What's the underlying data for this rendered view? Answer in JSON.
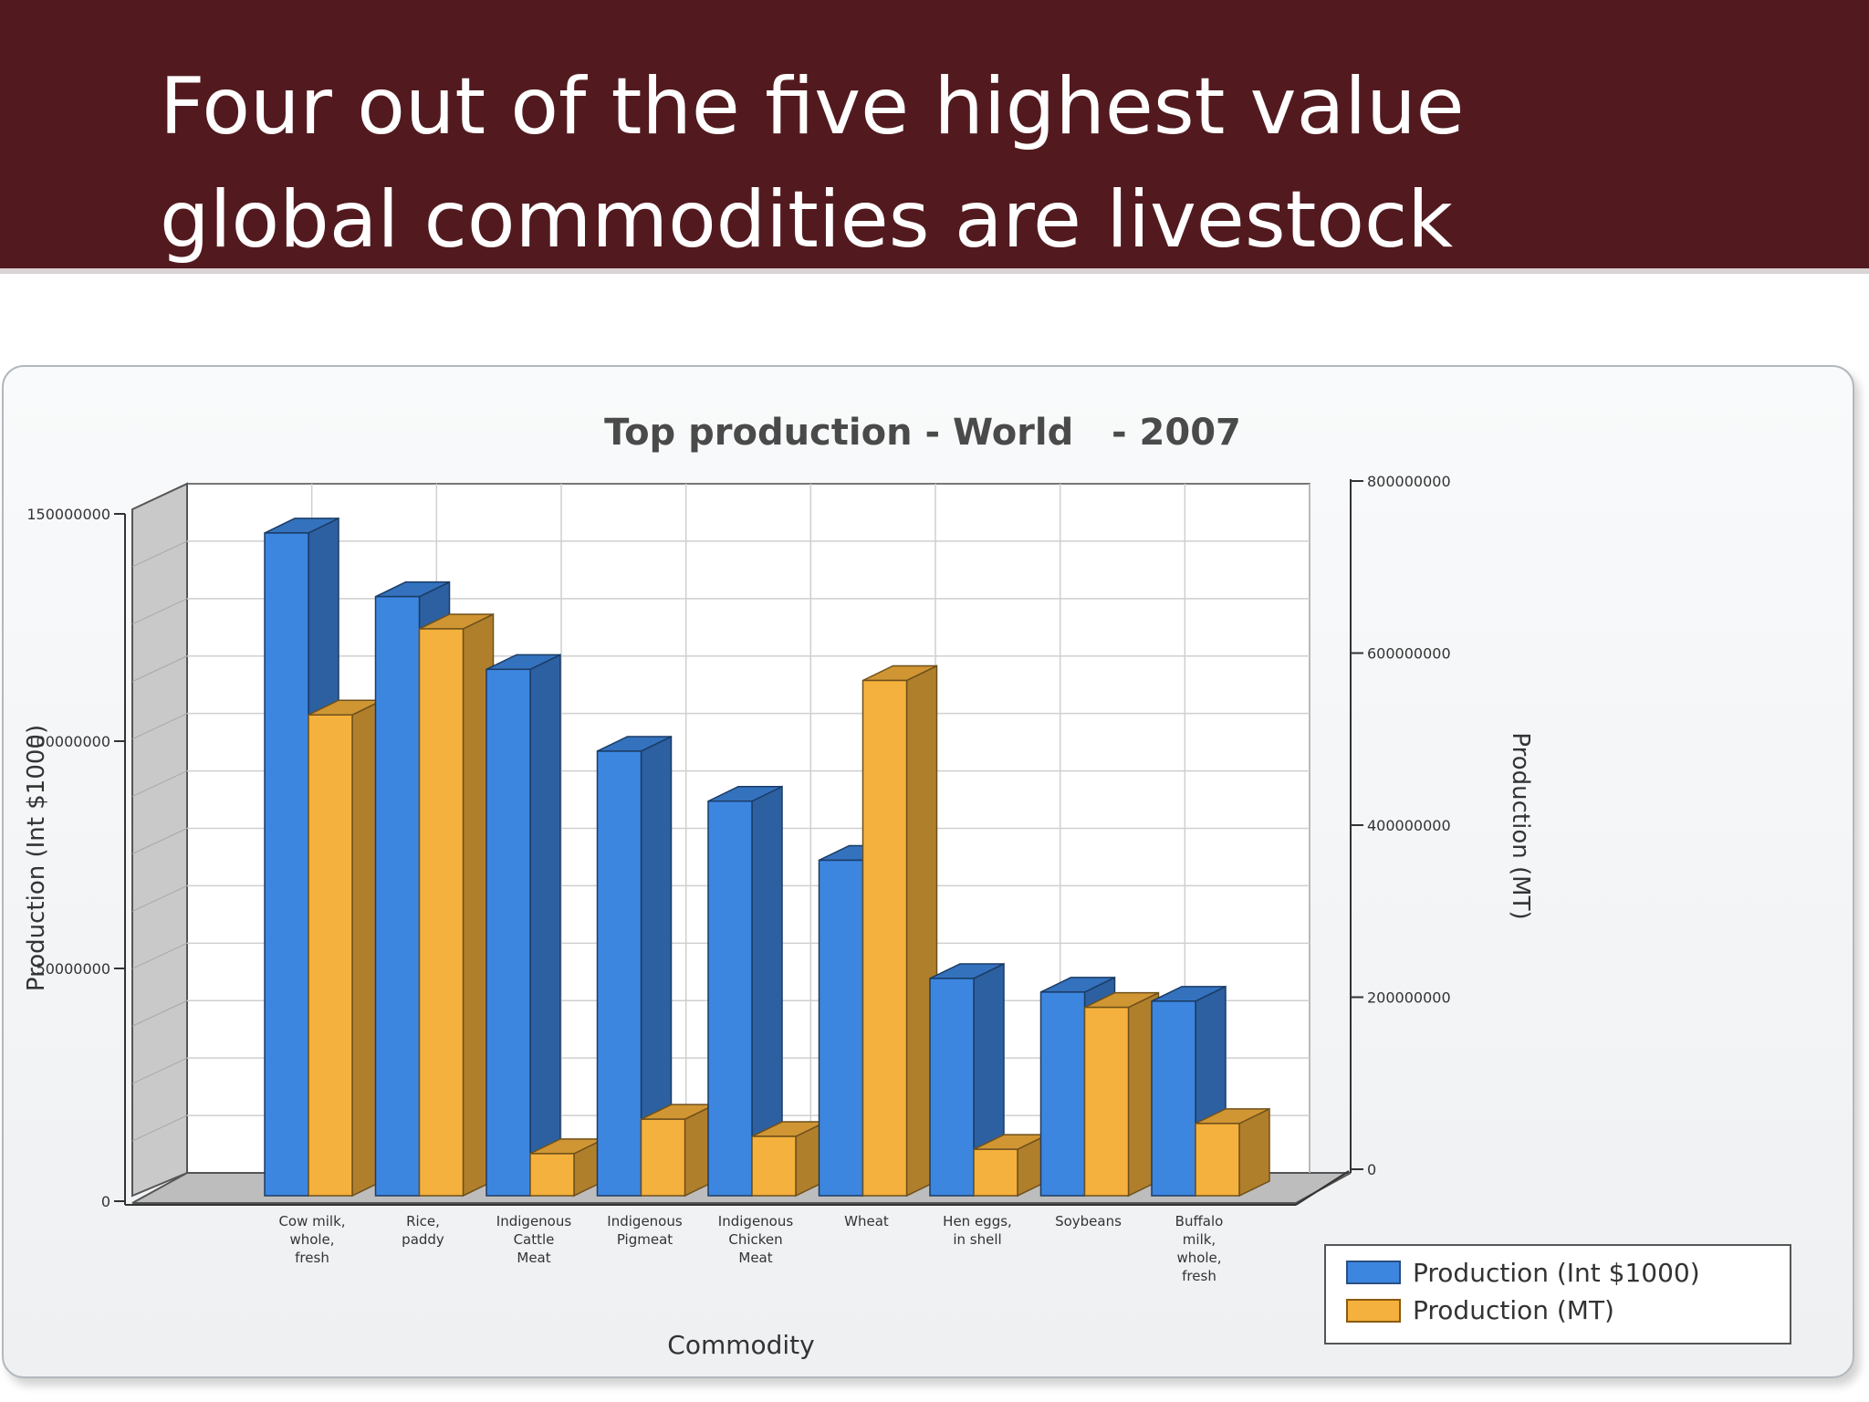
{
  "slide": {
    "title": "Four out of the five highest value global commodities are livestock"
  },
  "chart_data": {
    "type": "bar",
    "title": "Top production - World   - 2007",
    "xlabel": "Commodity",
    "ylabel_left": "Production (Int $1000)",
    "ylabel_right": "Production (MT)",
    "categories": [
      "Cow milk, whole, fresh",
      "Rice, paddy",
      "Indigenous Cattle Meat",
      "Indigenous Pigmeat",
      "Indigenous Chicken Meat",
      "Wheat",
      "Hen eggs, in shell",
      "Soybeans",
      "Buffalo milk, whole, fresh"
    ],
    "category_lines": [
      [
        "Cow milk,",
        "whole,",
        "fresh"
      ],
      [
        "Rice,",
        "paddy"
      ],
      [
        "Indigenous",
        "Cattle",
        "Meat"
      ],
      [
        "Indigenous",
        "Pigmeat"
      ],
      [
        "Indigenous",
        "Chicken",
        "Meat"
      ],
      [
        "Wheat"
      ],
      [
        "Hen eggs,",
        "in shell"
      ],
      [
        "Soybeans"
      ],
      [
        "Buffalo",
        "milk,",
        "whole,",
        "fresh"
      ]
    ],
    "series": [
      {
        "name": "Production (Int $1000)",
        "axis": "left",
        "color": "#3d86e0",
        "values": [
          146000000,
          132000000,
          116000000,
          98000000,
          87000000,
          74000000,
          48000000,
          45000000,
          43000000
        ]
      },
      {
        "name": "Production (MT)",
        "axis": "right",
        "color": "#f5b13d",
        "values": [
          560000000,
          660000000,
          50000000,
          90000000,
          70000000,
          600000000,
          55000000,
          220000000,
          85000000
        ]
      }
    ],
    "ylim_left": [
      0,
      150000000
    ],
    "yticks_left": [
      "0",
      "50000000",
      "100000000",
      "150000000"
    ],
    "ylim_right": [
      0,
      800000000
    ],
    "yticks_right": [
      "0",
      "200000000",
      "400000000",
      "600000000",
      "800000000"
    ],
    "grid": true,
    "legend_position": "bottom-right"
  }
}
